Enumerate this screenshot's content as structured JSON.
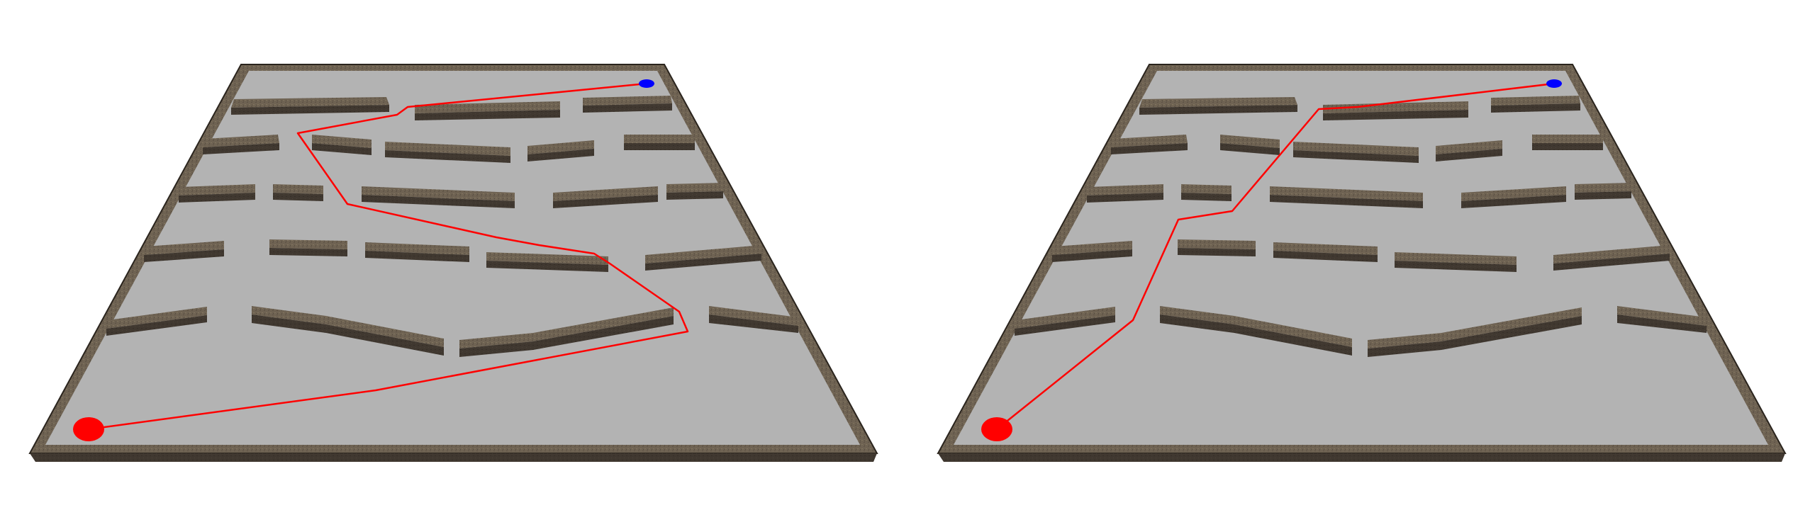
{
  "colors": {
    "background": "#ffffff",
    "floor": "#b3b3b3",
    "wall_top": "#6f6353",
    "wall_side": "#3f372c",
    "wall_edge": "#2a241d",
    "path": "#ff0000",
    "start_marker": "#ff0000",
    "goal_marker": "#0000ff"
  },
  "panels": [
    {
      "id": "left",
      "path_kind": "winding"
    },
    {
      "id": "right",
      "path_kind": "direct"
    }
  ]
}
